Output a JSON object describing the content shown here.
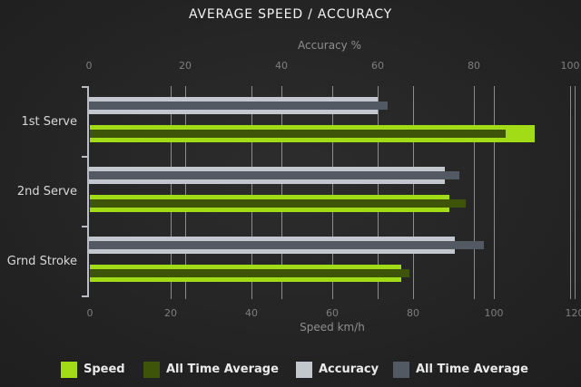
{
  "chart_data": {
    "type": "bar",
    "orientation": "horizontal",
    "title": "AVERAGE SPEED / ACCURACY",
    "categories": [
      "1st Serve",
      "2nd Serve",
      "Grnd Stroke"
    ],
    "axes": {
      "top": {
        "label": "Accuracy %",
        "ticks": [
          0,
          20,
          40,
          60,
          80,
          100
        ],
        "range": [
          0,
          100
        ]
      },
      "bottom": {
        "label": "Speed km/h",
        "ticks": [
          0,
          20,
          40,
          60,
          80,
          100,
          120
        ],
        "range": [
          0,
          120
        ]
      }
    },
    "series": [
      {
        "name": "Speed",
        "axis": "bottom",
        "color": "#a2dc16",
        "overlay": false,
        "values": [
          110,
          89,
          77
        ]
      },
      {
        "name": "All Time Average",
        "axis": "bottom",
        "color": "#3e5409",
        "overlay": true,
        "values": [
          103,
          93,
          79
        ]
      },
      {
        "name": "Accuracy",
        "axis": "top",
        "color": "#c2c8ce",
        "overlay": false,
        "values": [
          60,
          74,
          76
        ]
      },
      {
        "name": "All Time Average",
        "axis": "top",
        "color": "#525962",
        "overlay": true,
        "values": [
          62,
          77,
          82
        ]
      }
    ],
    "legend": [
      {
        "label": "Speed",
        "color": "#a2dc16"
      },
      {
        "label": "All Time Average",
        "color": "#3e5409"
      },
      {
        "label": "Accuracy",
        "color": "#c2c8ce"
      },
      {
        "label": "All Time Average",
        "color": "#525962"
      }
    ],
    "grid": true,
    "legend_position": "bottom"
  }
}
